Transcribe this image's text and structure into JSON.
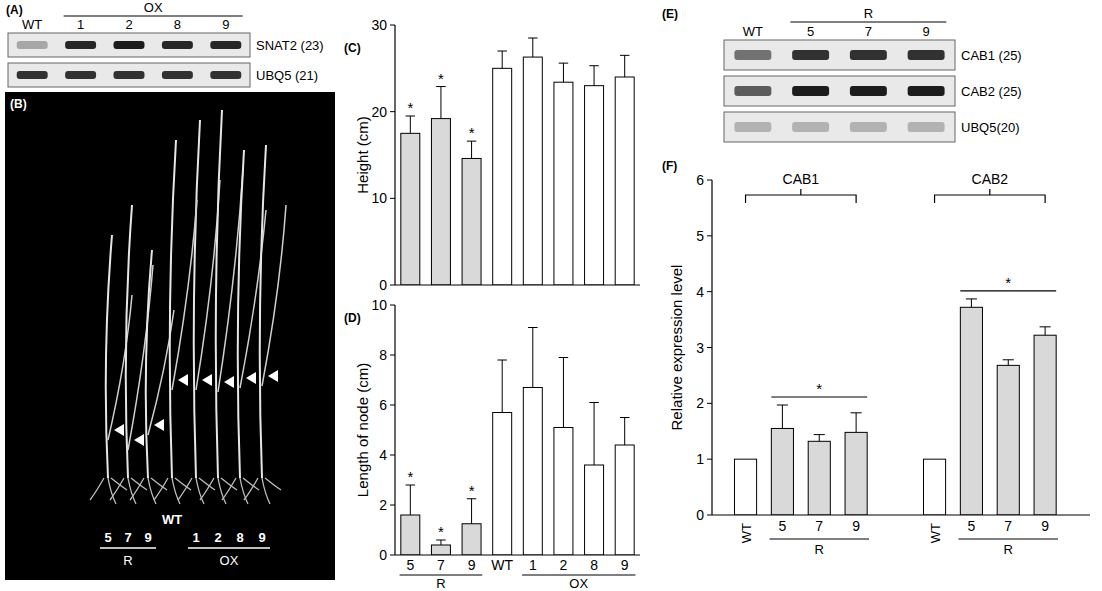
{
  "panels": {
    "A": {
      "label": "(A)",
      "group_label": "OX",
      "group_lanes": [
        1,
        2,
        3,
        4
      ],
      "lanes": [
        "WT",
        "1",
        "2",
        "8",
        "9"
      ],
      "rows": [
        {
          "label": "SNAT2 (23)",
          "band_strength": [
            0.3,
            0.9,
            0.95,
            0.9,
            0.9
          ]
        },
        {
          "label": "UBQ5 (21)",
          "band_strength": [
            0.85,
            0.85,
            0.85,
            0.85,
            0.85
          ]
        }
      ]
    },
    "B": {
      "label": "(B)",
      "wt_label": "WT",
      "plants": [
        "5",
        "7",
        "9",
        "1",
        "2",
        "8",
        "9"
      ],
      "groups": [
        {
          "label": "R",
          "members": [
            0,
            1,
            2
          ]
        },
        {
          "label": "OX",
          "members": [
            3,
            4,
            5,
            6
          ]
        }
      ]
    },
    "E": {
      "label": "(E)",
      "group_label": "R",
      "group_lanes": [
        1,
        2,
        3
      ],
      "lanes": [
        "WT",
        "5",
        "7",
        "9"
      ],
      "rows": [
        {
          "label": "CAB1 (25)",
          "band_strength": [
            0.55,
            0.85,
            0.85,
            0.85
          ]
        },
        {
          "label": "CAB2 (25)",
          "band_strength": [
            0.65,
            0.95,
            0.95,
            0.95
          ]
        },
        {
          "label": "UBQ5(20)",
          "band_strength": [
            0.25,
            0.25,
            0.25,
            0.25
          ]
        }
      ]
    }
  },
  "chart_data": [
    {
      "type": "bar",
      "panel_label": "(C)",
      "y_label": "Height (cm)",
      "categories": [
        "5",
        "7",
        "9",
        "WT",
        "1",
        "2",
        "8",
        "9"
      ],
      "values": [
        17.5,
        19.2,
        14.6,
        25,
        26.3,
        23.4,
        23,
        24
      ],
      "errors": [
        2,
        3.7,
        2,
        2,
        2.2,
        2.2,
        2.3,
        2.5
      ],
      "colors": [
        "#d9d9d9",
        "#d9d9d9",
        "#d9d9d9",
        "#ffffff",
        "#ffffff",
        "#ffffff",
        "#ffffff",
        "#ffffff"
      ],
      "annotations": [
        "*",
        "*",
        "*",
        null,
        null,
        null,
        null,
        null
      ],
      "ylim": [
        0,
        30
      ],
      "yticks": [
        0,
        10,
        20,
        30
      ],
      "tick_labels": "y"
    },
    {
      "type": "bar",
      "panel_label": "(D)",
      "y_label": "Length of node (cm)",
      "categories": [
        "5",
        "7",
        "9",
        "WT",
        "1",
        "2",
        "8",
        "9"
      ],
      "values": [
        1.6,
        0.4,
        1.25,
        5.7,
        6.7,
        5.1,
        3.6,
        4.4
      ],
      "errors": [
        1.2,
        0.2,
        1,
        2.1,
        2.4,
        2.8,
        2.5,
        1.1
      ],
      "colors": [
        "#d9d9d9",
        "#d9d9d9",
        "#d9d9d9",
        "#ffffff",
        "#ffffff",
        "#ffffff",
        "#ffffff",
        "#ffffff"
      ],
      "annotations": [
        "*",
        "*",
        "*",
        null,
        null,
        null,
        null,
        null
      ],
      "category_groups": [
        {
          "label": "R",
          "members": [
            0,
            1,
            2
          ]
        },
        {
          "label": "OX",
          "members": [
            4,
            5,
            6,
            7
          ]
        }
      ],
      "ylim": [
        0,
        10
      ],
      "yticks": [
        0,
        2,
        4,
        6,
        8,
        10
      ]
    },
    {
      "type": "bar",
      "panel_label": "(F)",
      "y_label": "Relative expression level",
      "groups": [
        {
          "name": "CAB1",
          "categories": [
            "WT",
            "5",
            "7",
            "9"
          ],
          "values": [
            1,
            1.55,
            1.32,
            1.48
          ],
          "errors": [
            0,
            0.42,
            0.12,
            0.35
          ],
          "annotation": "*"
        },
        {
          "name": "CAB2",
          "categories": [
            "WT",
            "5",
            "7",
            "9"
          ],
          "values": [
            1,
            3.72,
            2.68,
            3.22
          ],
          "errors": [
            0,
            0.15,
            0.1,
            0.15
          ],
          "annotation": "*"
        }
      ],
      "colors": [
        "#ffffff",
        "#d9d9d9",
        "#d9d9d9",
        "#d9d9d9"
      ],
      "category_groups": [
        {
          "label": "R",
          "members": [
            1,
            2,
            3
          ]
        }
      ],
      "ylim": [
        0,
        6
      ],
      "yticks": [
        0,
        1,
        2,
        3,
        4,
        5,
        6
      ]
    }
  ]
}
